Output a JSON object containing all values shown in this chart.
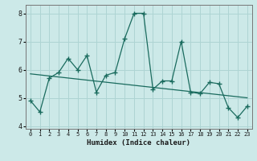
{
  "xlabel": "Humidex (Indice chaleur)",
  "ylabel": "",
  "background_color": "#cce9e8",
  "grid_color": "#aed4d3",
  "line_color": "#1a6b5e",
  "x_data": [
    0,
    1,
    2,
    3,
    4,
    5,
    6,
    7,
    8,
    9,
    10,
    11,
    12,
    13,
    14,
    15,
    16,
    17,
    18,
    19,
    20,
    21,
    22,
    23
  ],
  "y_data": [
    4.9,
    4.5,
    5.7,
    5.9,
    6.4,
    6.0,
    6.5,
    5.2,
    5.8,
    5.9,
    7.1,
    8.0,
    8.0,
    5.3,
    5.6,
    5.6,
    7.0,
    5.2,
    5.15,
    5.55,
    5.5,
    4.65,
    4.3,
    4.7
  ],
  "trend_x": [
    0,
    23
  ],
  "trend_y": [
    5.85,
    5.0
  ],
  "ylim": [
    3.9,
    8.3
  ],
  "xlim": [
    -0.5,
    23.5
  ],
  "yticks": [
    4,
    5,
    6,
    7,
    8
  ],
  "xticks": [
    0,
    1,
    2,
    3,
    4,
    5,
    6,
    7,
    8,
    9,
    10,
    11,
    12,
    13,
    14,
    15,
    16,
    17,
    18,
    19,
    20,
    21,
    22,
    23
  ],
  "xtick_labels": [
    "0",
    "1",
    "2",
    "3",
    "4",
    "5",
    "6",
    "7",
    "8",
    "9",
    "10",
    "11",
    "12",
    "13",
    "14",
    "15",
    "16",
    "17",
    "18",
    "19",
    "20",
    "21",
    "22",
    "23"
  ],
  "marker": "+"
}
